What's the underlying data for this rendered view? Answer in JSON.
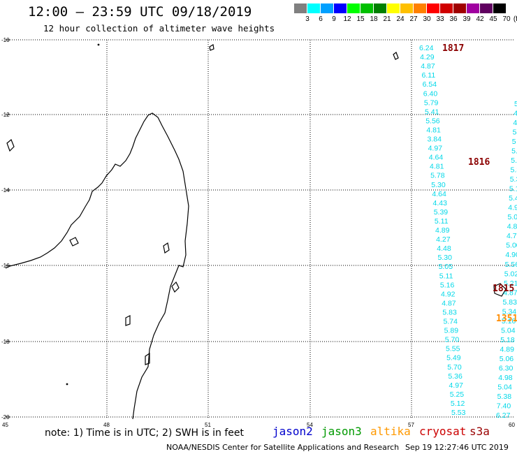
{
  "header": {
    "title": "12:00 – 23:59 UTC 09/18/2019",
    "subtitle": "12 hour collection of altimeter wave heights"
  },
  "legend": {
    "unit": "(ft)",
    "bins": [
      {
        "label": "3",
        "color": "#808080"
      },
      {
        "label": "6",
        "color": "#00ffff"
      },
      {
        "label": "9",
        "color": "#00a0ff"
      },
      {
        "label": "12",
        "color": "#0000ff"
      },
      {
        "label": "15",
        "color": "#00ff00"
      },
      {
        "label": "18",
        "color": "#00c000"
      },
      {
        "label": "21",
        "color": "#008000"
      },
      {
        "label": "24",
        "color": "#ffff00"
      },
      {
        "label": "27",
        "color": "#ffc000"
      },
      {
        "label": "30",
        "color": "#ff8000"
      },
      {
        "label": "33",
        "color": "#ff0000"
      },
      {
        "label": "36",
        "color": "#d00000"
      },
      {
        "label": "39",
        "color": "#a00000"
      },
      {
        "label": "42",
        "color": "#a000a0"
      },
      {
        "label": "45",
        "color": "#600060"
      },
      {
        "label": "70",
        "color": "#000000"
      }
    ]
  },
  "axes": {
    "lat_labels": [
      "-10",
      "-12",
      "-14",
      "-16",
      "-18",
      "-20"
    ],
    "lon_labels": [
      "45",
      "48",
      "51",
      "54",
      "57",
      "60"
    ]
  },
  "passes": [
    {
      "label": "1817",
      "color": "#8b0000"
    },
    {
      "label": "1816",
      "color": "#8b0000"
    },
    {
      "label": "1815",
      "color": "#8b0000"
    },
    {
      "label": "1351",
      "color": "#ff8c00"
    }
  ],
  "track_a": [
    "6.24",
    "4.29",
    "4.87",
    "6.11",
    "6.54",
    "6.40",
    "5.79",
    "5.41",
    "5.56",
    "4.81",
    "3.84",
    "4.97",
    "4.64",
    "4.81",
    "5.78",
    "5.30",
    "4.64",
    "4.43",
    "5.39",
    "5.11",
    "4.89",
    "4.27",
    "4.48",
    "5.30",
    "5.05",
    "5.11",
    "5.16",
    "4.92",
    "4.87",
    "5.83",
    "5.74",
    "5.89",
    "5.70",
    "5.55",
    "5.49",
    "5.70",
    "5.36",
    "4.97",
    "5.25",
    "5.12",
    "5.53"
  ],
  "track_b": [
    "5",
    "4",
    "4",
    "5",
    "5",
    "5.1",
    "5.29",
    "5.34",
    "5.32",
    "5.17",
    "5.43",
    "4.91",
    "5.09",
    "4.86",
    "4.70",
    "5.00",
    "4.90",
    "5.56",
    "5.02",
    "5.21",
    "4.87",
    "5.83",
    "5.34",
    "5.10",
    "5.04",
    "5.18",
    "4.89",
    "5.06",
    "6.30",
    "4.98",
    "5.04",
    "5.38",
    "7.40",
    "6.27"
  ],
  "footer": {
    "note": "note: 1) Time is in UTC; 2) SWH is in feet",
    "satellites": [
      {
        "name": "jason2",
        "color": "#0000cc"
      },
      {
        "name": "jason3",
        "color": "#009900"
      },
      {
        "name": "altika",
        "color": "#ff9900"
      },
      {
        "name": "cryosat",
        "color": "#cc0000"
      },
      {
        "name": "s3a",
        "color": "#990000"
      }
    ],
    "credit": "NOAA/NESDIS Center for Satellite Applications and Research",
    "timestamp": "Sep 19 12:27:46 UTC 2019"
  }
}
